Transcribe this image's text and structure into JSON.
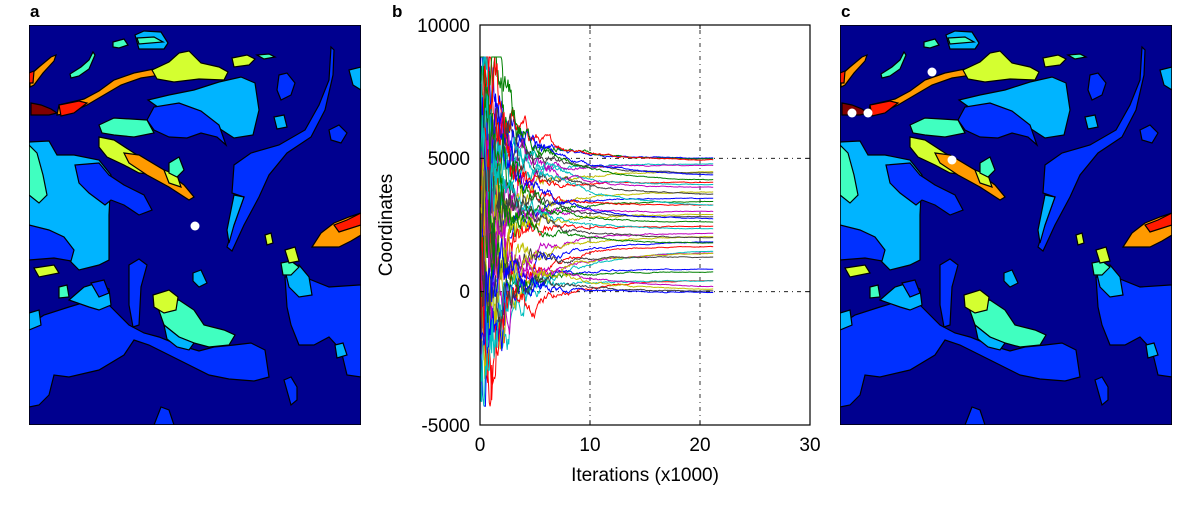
{
  "panels": {
    "a": "a",
    "b": "b",
    "c": "c"
  },
  "map_colors": {
    "navy": "#00008f",
    "blue": "#0030ff",
    "lightblue": "#00b4ff",
    "aqua": "#40ffc0",
    "lime": "#d4ff30",
    "orange": "#ff9a00",
    "red": "#ff1a00",
    "darkred": "#800000",
    "marker": "#ffffff"
  },
  "chart_data": {
    "type": "line",
    "title": "",
    "xlabel": "Iterations (x1000)",
    "ylabel": "Coordinates",
    "xlim": [
      0,
      30
    ],
    "ylim": [
      -5000,
      10000
    ],
    "xticks": [
      "0",
      "10",
      "20",
      "30"
    ],
    "yticks": [
      "10000",
      "5000",
      "0",
      "-5000"
    ],
    "xtick_values": [
      0,
      10,
      20,
      30
    ],
    "ytick_values": [
      10000,
      5000,
      0,
      -5000
    ],
    "grid": "dotted at x=10,20 and y=0,5000",
    "x_end": 21.2,
    "color_cycle": [
      "#0000ff",
      "#008000",
      "#ff0000",
      "#00bfbf",
      "#bf00bf",
      "#bfbf00",
      "#404040"
    ],
    "series_final_values": [
      5000,
      4950,
      4900,
      4800,
      4750,
      4500,
      4400,
      4300,
      4150,
      4100,
      4000,
      3900,
      3750,
      3600,
      3500,
      3400,
      3250,
      3150,
      3000,
      2900,
      2800,
      2700,
      2600,
      2450,
      2350,
      2200,
      2100,
      2000,
      1900,
      1800,
      1700,
      1600,
      1500,
      1450,
      1300,
      850,
      750,
      450,
      400,
      150,
      50,
      0,
      -50
    ]
  }
}
